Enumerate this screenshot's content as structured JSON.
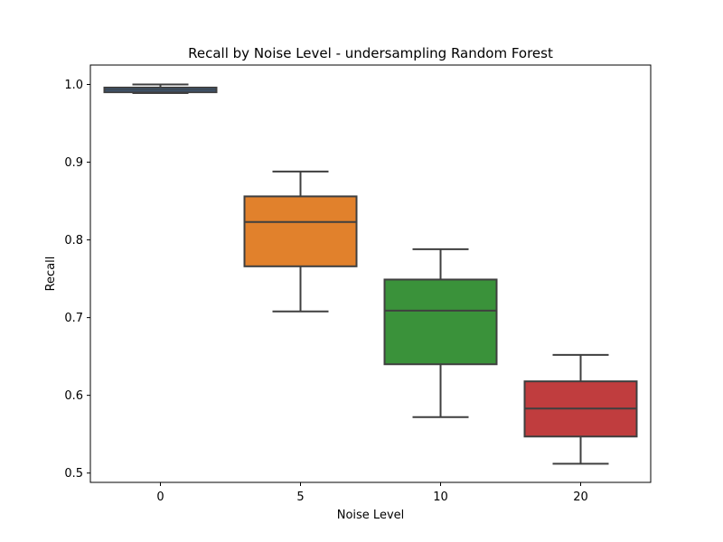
{
  "chart_data": {
    "type": "box",
    "title": "Recall by Noise Level - undersampling Random Forest",
    "xlabel": "Noise Level",
    "ylabel": "Recall",
    "categories": [
      "0",
      "5",
      "10",
      "20"
    ],
    "ylim": [
      0.488,
      1.025
    ],
    "yticks": [
      "0.5",
      "0.6",
      "0.7",
      "0.8",
      "0.9",
      "1.0"
    ],
    "grid": false,
    "series": [
      {
        "category": "0",
        "whisker_low": 0.989,
        "q1": 0.99,
        "median": 0.993,
        "q3": 0.996,
        "whisker_high": 1.0,
        "color": "#3b73b1"
      },
      {
        "category": "5",
        "whisker_low": 0.708,
        "q1": 0.766,
        "median": 0.823,
        "q3": 0.856,
        "whisker_high": 0.888,
        "color": "#e1812c"
      },
      {
        "category": "10",
        "whisker_low": 0.572,
        "q1": 0.64,
        "median": 0.709,
        "q3": 0.749,
        "whisker_high": 0.788,
        "color": "#3a923a"
      },
      {
        "category": "20",
        "whisker_low": 0.512,
        "q1": 0.547,
        "median": 0.583,
        "q3": 0.618,
        "whisker_high": 0.652,
        "color": "#c03d3e"
      }
    ]
  }
}
